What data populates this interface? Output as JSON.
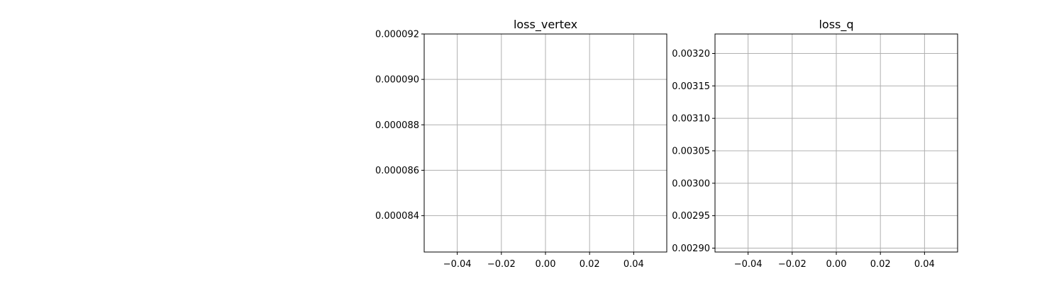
{
  "chart_data": [
    {
      "type": "line",
      "title": "loss_vertex",
      "xlabel": "",
      "ylabel": "",
      "xlim": [
        -0.055,
        0.055
      ],
      "ylim": [
        8.24e-05,
        9.2e-05
      ],
      "x_ticks": [
        -0.04,
        -0.02,
        0.0,
        0.02,
        0.04
      ],
      "x_tick_labels": [
        "−0.04",
        "−0.02",
        "0.00",
        "0.02",
        "0.04"
      ],
      "y_ticks": [
        8.4e-05,
        8.6e-05,
        8.8e-05,
        9e-05,
        9.2e-05
      ],
      "y_tick_labels": [
        "0.000084",
        "0.000086",
        "0.000088",
        "0.000090",
        "0.000092"
      ],
      "grid": true,
      "series": [
        {
          "x": [],
          "y": []
        }
      ]
    },
    {
      "type": "line",
      "title": "loss_q",
      "xlabel": "",
      "ylabel": "",
      "xlim": [
        -0.055,
        0.055
      ],
      "ylim": [
        0.002894,
        0.00323
      ],
      "x_ticks": [
        -0.04,
        -0.02,
        0.0,
        0.02,
        0.04
      ],
      "x_tick_labels": [
        "−0.04",
        "−0.02",
        "0.00",
        "0.02",
        "0.04"
      ],
      "y_ticks": [
        0.0029,
        0.00295,
        0.003,
        0.00305,
        0.0031,
        0.00315,
        0.0032
      ],
      "y_tick_labels": [
        "0.00290",
        "0.00295",
        "0.00300",
        "0.00305",
        "0.00310",
        "0.00315",
        "0.00320"
      ],
      "grid": true,
      "series": [
        {
          "x": [],
          "y": []
        }
      ]
    }
  ],
  "colors": {
    "grid": "#b0b0b0",
    "axis": "#000000",
    "text": "#000000",
    "background": "#ffffff"
  }
}
